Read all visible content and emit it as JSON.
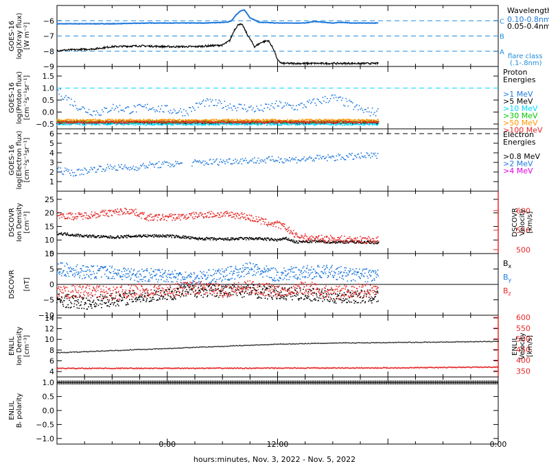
{
  "figure": {
    "xlabel": "hours:minutes, Nov.  3, 2022 - Nov.  5, 2022",
    "xticks": [
      "0:00",
      "12:00",
      "0:00"
    ]
  },
  "colors": {
    "black": "#000000",
    "blue": "#1e78dc",
    "cyan": "#00d7ff",
    "green": "#00c800",
    "orange": "#ff9600",
    "red": "#e62828",
    "magenta": "#e600e6",
    "flare": "#1e8cdc"
  },
  "chart_data": [
    {
      "type": "line",
      "id": "xray",
      "ylabel": [
        "GOES-16",
        "log(Xray flux)",
        "[W m⁻²]"
      ],
      "ylim": [
        -9,
        -5
      ],
      "yticks": [
        -9,
        -8,
        -7,
        -6
      ],
      "legend_title": "Wavelength",
      "legend": [
        {
          "name": "0.10-0.8nm",
          "color": "#1e78dc"
        },
        {
          "name": "0.05-0.4nm",
          "color": "#000000"
        }
      ],
      "flare_levels": [
        {
          "label": "A",
          "value": -8
        },
        {
          "label": "B",
          "value": -7
        },
        {
          "label": "C",
          "value": -6
        }
      ],
      "flare_note": [
        "flare class",
        "(.1-.8nm)"
      ],
      "series": [
        {
          "name": "0.10-0.8nm",
          "color": "#1e78dc",
          "x": [
            -12,
            -6,
            -2,
            4,
            6.5,
            7,
            7.5,
            8,
            8.4,
            9,
            10,
            12,
            15,
            16,
            17,
            18,
            19,
            20,
            23
          ],
          "y": [
            -6.2,
            -6.2,
            -6.15,
            -6.15,
            -6.1,
            -6.0,
            -5.6,
            -5.35,
            -5.3,
            -5.8,
            -6.1,
            -6.15,
            -6.15,
            -6.05,
            -6.1,
            -6.15,
            -6.1,
            -6.15,
            -6.15
          ]
        },
        {
          "name": "0.05-0.4nm",
          "color": "#000000",
          "x": [
            -12,
            -8,
            -6,
            -3,
            0,
            3,
            6,
            6.8,
            7.3,
            7.8,
            8.2,
            8.7,
            9.5,
            10.3,
            11,
            11.6,
            12,
            12.5,
            23
          ],
          "y": [
            -7.95,
            -7.85,
            -7.7,
            -7.65,
            -7.7,
            -7.7,
            -7.6,
            -7.3,
            -6.6,
            -6.2,
            -6.3,
            -6.9,
            -7.7,
            -7.4,
            -7.3,
            -7.9,
            -8.6,
            -8.8,
            -8.8
          ]
        }
      ]
    },
    {
      "type": "scatter",
      "id": "proton",
      "ylabel": [
        "GOES-16",
        "log(Proton flux)",
        "[cm⁻²s⁻¹sr⁻¹]"
      ],
      "ylim": [
        -0.7,
        1.9
      ],
      "yticks": [
        -0.5,
        0.0,
        0.5,
        1.0,
        1.5
      ],
      "reference_line": 1.0,
      "legend_title": [
        "Proton",
        "Energies"
      ],
      "legend": [
        {
          "name": ">1 MeV",
          "color": "#1e78dc"
        },
        {
          "name": ">5 MeV",
          "color": "#000000"
        },
        {
          "name": ">10 MeV",
          "color": "#00d7ff"
        },
        {
          "name": ">30 MeV",
          "color": "#00c800"
        },
        {
          "name": ">50 MeV",
          "color": "#ff9600"
        },
        {
          "name": ">100 MeV",
          "color": "#e62828"
        }
      ],
      "series": [
        {
          "name": ">1 MeV",
          "color": "#1e78dc",
          "x": [
            -12,
            -11,
            -10,
            -9,
            -8,
            -7,
            -6,
            -4,
            -2,
            0,
            2,
            4,
            6,
            8,
            10,
            12,
            14,
            16,
            18,
            20,
            21,
            22,
            23
          ],
          "y": [
            0.9,
            0.6,
            0.3,
            0.1,
            0.0,
            0.0,
            0.2,
            0.1,
            0.2,
            0.1,
            0.0,
            0.4,
            0.3,
            0.2,
            0.1,
            0.3,
            0.2,
            0.4,
            0.6,
            0.3,
            0.1,
            0.0,
            0.0
          ]
        },
        {
          "name": ">5 MeV",
          "color": "#000000",
          "x": [
            -12,
            23
          ],
          "y": [
            -0.45,
            -0.45
          ]
        },
        {
          "name": ">10 MeV",
          "color": "#00d7ff",
          "x": [
            -12,
            23
          ],
          "y": [
            -0.5,
            -0.5
          ]
        },
        {
          "name": ">30 MeV",
          "color": "#00c800",
          "x": [
            -12,
            23
          ],
          "y": [
            -0.4,
            -0.4
          ]
        },
        {
          "name": ">50 MeV",
          "color": "#ff9600",
          "x": [
            -12,
            23
          ],
          "y": [
            -0.35,
            -0.35
          ]
        },
        {
          "name": ">100 MeV",
          "color": "#e62828",
          "x": [
            -12,
            23
          ],
          "y": [
            -0.42,
            -0.42
          ]
        }
      ]
    },
    {
      "type": "scatter",
      "id": "electron",
      "ylabel": [
        "GOES-16",
        "log(Electron flux)",
        "[cm⁻²s⁻¹sr⁻¹]"
      ],
      "ylim": [
        0,
        6.5
      ],
      "yticks": [
        1,
        2,
        3,
        4,
        5,
        6
      ],
      "reference_line": 6.0,
      "legend_title": [
        "Electron",
        "Energies"
      ],
      "legend": [
        {
          "name": ">0.8 MeV",
          "color": "#000000"
        },
        {
          "name": ">2 MeV",
          "color": "#1e78dc"
        },
        {
          "name": ">4 MeV",
          "color": "#e600e6"
        }
      ],
      "series": [
        {
          "name": ">2 MeV",
          "color": "#1e78dc",
          "x": [
            -12,
            -10,
            -8,
            -6,
            -4,
            -2,
            0,
            2,
            4,
            6,
            8,
            10,
            12,
            14,
            16,
            18,
            20,
            23
          ],
          "y": [
            2.2,
            1.9,
            2.3,
            2.5,
            2.4,
            2.7,
            2.8,
            2.9,
            3.0,
            3.1,
            3.2,
            3.2,
            3.3,
            3.3,
            3.4,
            3.5,
            3.6,
            3.7
          ]
        }
      ]
    },
    {
      "type": "scatter",
      "id": "dscovr_density",
      "ylabel": [
        "DSCOVR",
        "Ion Density",
        "[cm⁻³]"
      ],
      "ylim": [
        5,
        28
      ],
      "yticks": [
        5,
        10,
        15,
        20,
        25
      ],
      "right_ylabel": [
        "DSCOVR",
        "Velocity",
        "[km/s]"
      ],
      "right_ylim": [
        490,
        650
      ],
      "right_yticks": [
        500,
        550,
        600
      ],
      "series": [
        {
          "name": "Ion Density",
          "color": "#000000",
          "axis": "left",
          "x": [
            -12,
            -9,
            -6,
            -3,
            0,
            2,
            3,
            4,
            6,
            8,
            10,
            12,
            13,
            14,
            16,
            18,
            20,
            23
          ],
          "y": [
            12.5,
            11.5,
            11.0,
            11.5,
            11.5,
            11.0,
            10.5,
            10.5,
            10.2,
            10.5,
            10.5,
            10.0,
            10.5,
            9.2,
            9.5,
            9.2,
            9.3,
            9.0
          ]
        },
        {
          "name": "Velocity",
          "color": "#e62828",
          "axis": "right",
          "x": [
            -12,
            -10,
            -8,
            -6,
            -4,
            -2,
            0,
            2,
            4,
            6,
            8,
            10,
            11,
            12,
            13,
            14,
            16,
            18,
            20,
            23
          ],
          "y": [
            590,
            585,
            590,
            595,
            600,
            582,
            583,
            585,
            590,
            590,
            588,
            575,
            568,
            565,
            555,
            535,
            528,
            528,
            525,
            525
          ]
        }
      ]
    },
    {
      "type": "scatter",
      "id": "dscovr_field",
      "ylabel": [
        "DSCOVR",
        "",
        "[nT]"
      ],
      "ylim": [
        -10,
        10
      ],
      "yticks": [
        -10,
        -5,
        0,
        5,
        10
      ],
      "zero_line": 0,
      "legend": [
        {
          "name": "B",
          "sub": "x",
          "color": "#000000"
        },
        {
          "name": "B",
          "sub": "y",
          "color": "#1e78dc"
        },
        {
          "name": "B",
          "sub": "z",
          "color": "#e62828"
        }
      ],
      "series": [
        {
          "name": "Bx",
          "color": "#000000",
          "x": [
            -12,
            -9,
            -6,
            -3,
            0,
            3,
            6,
            9,
            12,
            15,
            18,
            20,
            23
          ],
          "y": [
            -5,
            -6,
            -5,
            -4,
            -3,
            -2,
            -2,
            -2,
            -3,
            -3,
            -4,
            -4,
            -4
          ]
        },
        {
          "name": "By",
          "color": "#1e78dc",
          "x": [
            -12,
            -9,
            -6,
            -3,
            0,
            3,
            6,
            9,
            12,
            15,
            18,
            20,
            23
          ],
          "y": [
            5,
            4,
            4,
            3,
            3,
            2,
            3,
            5,
            3,
            4,
            4,
            3,
            3
          ]
        },
        {
          "name": "Bz",
          "color": "#e62828",
          "x": [
            -12,
            -9,
            -6,
            -3,
            0,
            3,
            6,
            9,
            12,
            15,
            18,
            20,
            23
          ],
          "y": [
            -3,
            -2,
            -3,
            -2,
            -2,
            -1,
            -2,
            -1,
            -2,
            -1,
            -3,
            -2,
            -2
          ]
        }
      ]
    },
    {
      "type": "scatter",
      "id": "enlil_density",
      "ylabel": [
        "ENLIL",
        "Ion Density",
        "[cm⁻³]"
      ],
      "ylim": [
        3,
        14.5
      ],
      "yticks": [
        4,
        6,
        8,
        10,
        12,
        14
      ],
      "right_ylabel": [
        "ENLIL",
        "Velocity",
        "[km/s]"
      ],
      "right_ylim": [
        322,
        610
      ],
      "right_yticks": [
        350,
        400,
        450,
        500,
        550,
        600
      ],
      "series": [
        {
          "name": "Ion Density",
          "color": "#000000",
          "axis": "left",
          "x": [
            -12,
            0,
            6,
            12,
            18,
            24,
            36
          ],
          "y": [
            7.5,
            8.3,
            8.7,
            9.1,
            9.3,
            9.4,
            9.6
          ]
        },
        {
          "name": "Velocity",
          "color": "#e62828",
          "axis": "right",
          "x": [
            -12,
            0,
            12,
            24,
            36
          ],
          "y": [
            362,
            362,
            363,
            364,
            368
          ]
        }
      ]
    },
    {
      "type": "scatter",
      "id": "enlil_polarity",
      "ylabel": [
        "ENLIL",
        "Bᵣ polarity",
        ""
      ],
      "ylim": [
        -1.2,
        1.2
      ],
      "yticks": [
        -1.0,
        -0.5,
        0.0,
        0.5,
        1.0
      ],
      "series": [
        {
          "name": "Br polarity",
          "color": "#000000",
          "x": [
            -12,
            36
          ],
          "y": [
            1.0,
            1.0
          ]
        }
      ]
    }
  ]
}
